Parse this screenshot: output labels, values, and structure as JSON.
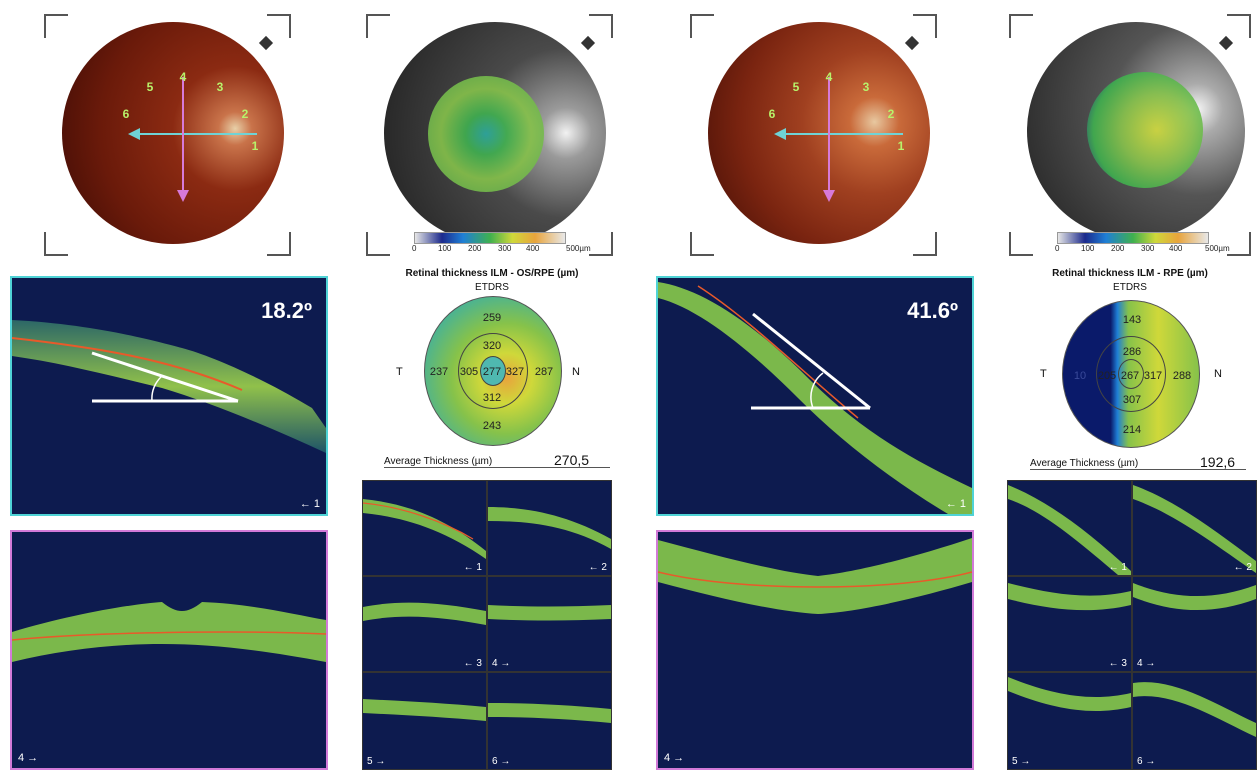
{
  "left": {
    "angle": "18.2º",
    "fundus_labels": [
      "5",
      "4",
      "3",
      "6",
      "2",
      "1"
    ],
    "etdrs": {
      "title": "Retinal thickness ILM - OS/RPE (µm)",
      "subtitle": "ETDRS",
      "side_t": "T",
      "side_n": "N",
      "outer_sup": "259",
      "outer_temp": "237",
      "outer_nas": "287",
      "outer_inf": "243",
      "inner_sup": "320",
      "inner_temp": "305",
      "inner_nas": "327",
      "inner_inf": "312",
      "center": "277"
    },
    "avg_label": "Average Thickness   (µm)",
    "avg_value": "270,5",
    "scale": {
      "t0": "0",
      "t1": "100",
      "t2": "200",
      "t3": "300",
      "t4": "400",
      "t5": "500µm"
    },
    "scans": {
      "s1": "← 1",
      "s4": "4 →",
      "g1": "← 1",
      "g2": "← 2",
      "g3": "← 3",
      "g4": "4 →",
      "g5": "5 →",
      "g6": "6 →"
    }
  },
  "right": {
    "angle": "41.6º",
    "fundus_labels": [
      "5",
      "4",
      "3",
      "6",
      "2",
      "1"
    ],
    "etdrs": {
      "title": "Retinal thickness ILM - RPE (µm)",
      "subtitle": "ETDRS",
      "side_t": "T",
      "side_n": "N",
      "outer_sup": "143",
      "outer_temp": "10",
      "outer_nas": "288",
      "outer_inf": "214",
      "inner_sup": "286",
      "inner_temp": "205",
      "inner_nas": "317",
      "inner_inf": "307",
      "center": "267"
    },
    "avg_label": "Average Thickness   (µm)",
    "avg_value": "192,6",
    "scale": {
      "t0": "0",
      "t1": "100",
      "t2": "200",
      "t3": "300",
      "t4": "400",
      "t5": "500µm"
    },
    "scans": {
      "s1": "← 1",
      "s4": "4 →",
      "g1": "← 1",
      "g2": "← 2",
      "g3": "← 3",
      "g4": "4 →",
      "g5": "5 →",
      "g6": "6 →"
    }
  },
  "colors": {
    "cyan_frame": "#4fd3d6",
    "magenta_frame": "#d27ad8",
    "oct_bg": "#0b1a4a",
    "oct_layer": "#8fd34a"
  }
}
